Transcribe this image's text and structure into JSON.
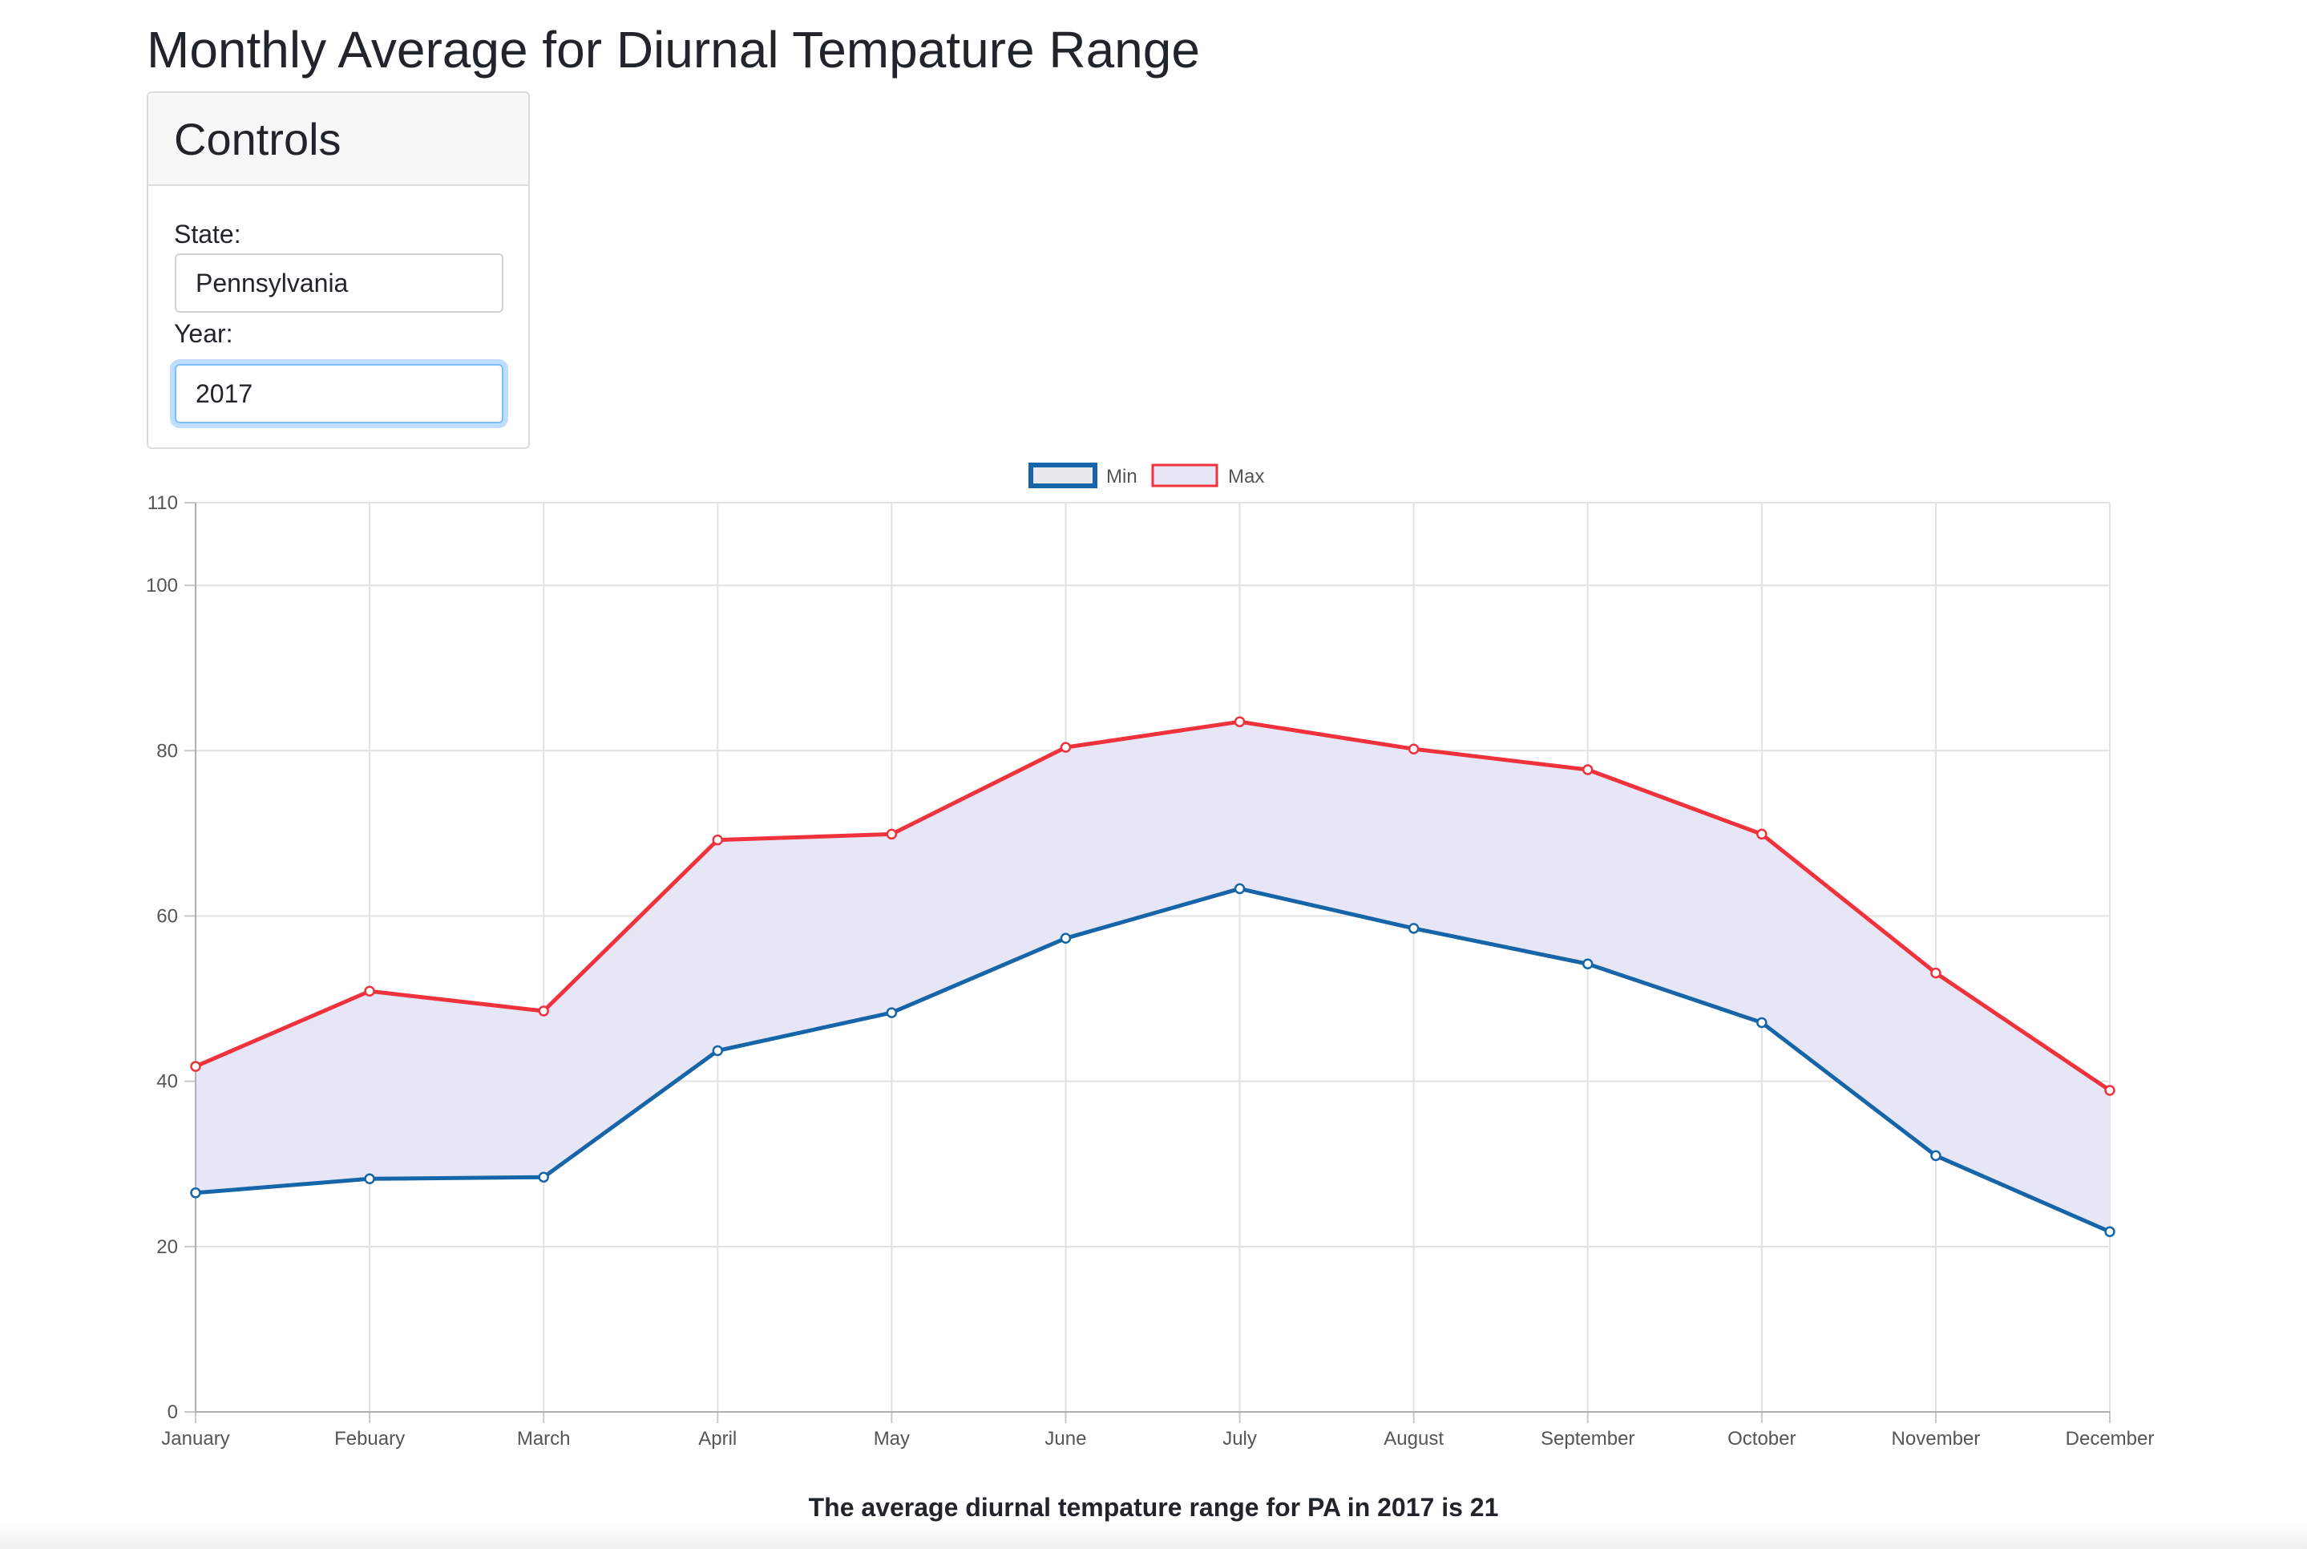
{
  "page": {
    "title": "Monthly Average for Diurnal Tempature Range",
    "summary": "The average diurnal tempature range for PA in 2017 is 21"
  },
  "controls": {
    "title": "Controls",
    "state_label": "State:",
    "state_value": "Pennsylvania",
    "year_label": "Year:",
    "year_value": "2017"
  },
  "chart_data": {
    "type": "line",
    "categories": [
      "January",
      "Febuary",
      "March",
      "April",
      "May",
      "June",
      "July",
      "August",
      "September",
      "October",
      "November",
      "December"
    ],
    "series": [
      {
        "name": "Min",
        "color": "#1565a8",
        "values": [
          26.5,
          28.2,
          28.4,
          43.7,
          48.3,
          57.3,
          63.3,
          58.5,
          54.2,
          47.1,
          31.0,
          21.8
        ]
      },
      {
        "name": "Max",
        "color": "#f0323c",
        "values": [
          41.8,
          50.9,
          48.5,
          69.2,
          69.9,
          80.4,
          83.5,
          80.2,
          77.7,
          69.9,
          53.1,
          38.9
        ]
      }
    ],
    "fill_between_color": "#e6e6f7",
    "y_ticks": [
      0,
      20,
      40,
      60,
      80,
      100,
      110
    ],
    "ylim": [
      0,
      110
    ],
    "grid": true,
    "legend_position": "top-center"
  }
}
